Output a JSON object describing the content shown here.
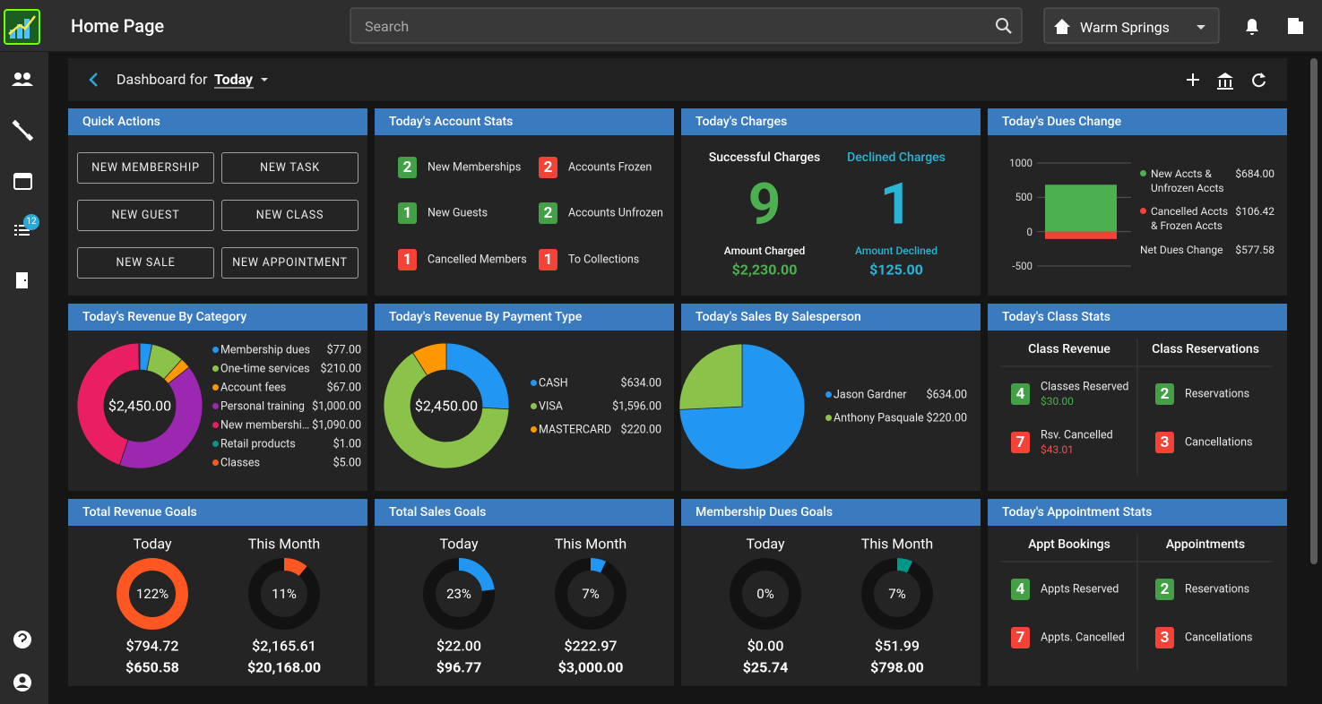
{
  "header": {
    "title": "Home Page",
    "search_placeholder": "Search",
    "location": "Warm Springs"
  },
  "sidebar": {
    "badge": 12
  },
  "toolbar": {
    "label": "Dashboard for",
    "period": "Today"
  },
  "quick_actions": {
    "title": "Quick Actions",
    "buttons": [
      "NEW MEMBERSHIP",
      "NEW TASK",
      "NEW GUEST",
      "NEW CLASS",
      "NEW SALE",
      "NEW APPOINTMENT"
    ]
  },
  "account_stats": {
    "title": "Today's Account Stats",
    "items": [
      {
        "count": 2,
        "label": "New Memberships",
        "color": "#43a047"
      },
      {
        "count": 2,
        "label": "Accounts Frozen",
        "color": "#f44336"
      },
      {
        "count": 1,
        "label": "New Guests",
        "color": "#43a047"
      },
      {
        "count": 2,
        "label": "Accounts Unfrozen",
        "color": "#43a047"
      },
      {
        "count": 1,
        "label": "Cancelled Members",
        "color": "#f44336"
      },
      {
        "count": 1,
        "label": "To Collections",
        "color": "#f44336"
      }
    ]
  },
  "charges": {
    "title": "Today's Charges",
    "successful": {
      "label": "Successful Charges",
      "count": 9,
      "amount_label": "Amount Charged",
      "amount": "$2,230.00",
      "color": "#4caf50"
    },
    "declined": {
      "label": "Declined Charges",
      "count": 1,
      "amount_label": "Amount Declined",
      "amount": "$125.00",
      "color": "#29b6d6"
    }
  },
  "chart_data": [
    {
      "type": "bar",
      "title": "Today's Dues Change",
      "categories": [
        null
      ],
      "series": [
        {
          "name": "New Accts & Unfrozen Accts",
          "color": "#4caf50",
          "values": [
            684
          ],
          "value_labels": [
            "$684.00"
          ]
        },
        {
          "name": "Cancelled Accts & Frozen Accts",
          "color": "#f44336",
          "values": [
            -106.42
          ],
          "value_labels": [
            "$106.42"
          ]
        }
      ],
      "ylim": [
        -500,
        1000
      ],
      "yticks": [
        -500,
        0,
        500,
        1000
      ],
      "grid": true,
      "net": {
        "label": "Net Dues Change",
        "value": "$577.58"
      }
    },
    {
      "type": "pie",
      "title": "Today's Revenue By Category",
      "donut": true,
      "center_label": "$2,450.00",
      "categories": [
        "Membership dues",
        "One-time services",
        "Account fees",
        "Personal training",
        "New membershi…",
        "Retail products",
        "Classes"
      ],
      "values": [
        77,
        210,
        67,
        1000,
        1090,
        1,
        5
      ],
      "value_labels": [
        "$77.00",
        "$210.00",
        "$67.00",
        "$1,000.00",
        "$1,090.00",
        "$1.00",
        "$5.00"
      ],
      "colors": [
        "#2196f3",
        "#8bc34a",
        "#ff9800",
        "#9c27b0",
        "#e91e63",
        "#009688",
        "#ff5722"
      ]
    },
    {
      "type": "pie",
      "title": "Today's Revenue By Payment Type",
      "donut": true,
      "center_label": "$2,450.00",
      "categories": [
        "CASH",
        "VISA",
        "MASTERCARD"
      ],
      "values": [
        634,
        1596,
        220
      ],
      "value_labels": [
        "$634.00",
        "$1,596.00",
        "$220.00"
      ],
      "colors": [
        "#2196f3",
        "#8bc34a",
        "#ff9800"
      ]
    },
    {
      "type": "pie",
      "title": "Today's Sales By Salesperson",
      "donut": false,
      "categories": [
        "Jason Gardner",
        "Anthony Pasquale"
      ],
      "values": [
        634,
        220
      ],
      "value_labels": [
        "$634.00",
        "$220.00"
      ],
      "colors": [
        "#2196f3",
        "#8bc34a"
      ]
    }
  ],
  "class_stats": {
    "title": "Today's Class Stats",
    "columns": [
      {
        "heading": "Class Revenue",
        "items": [
          {
            "count": 4,
            "label": "Classes Reserved",
            "amount": "$30.00",
            "color": "#43a047"
          },
          {
            "count": 7,
            "label": "Rsv. Cancelled",
            "amount": "$43.01",
            "color": "#f44336"
          }
        ]
      },
      {
        "heading": "Class Reservations",
        "items": [
          {
            "count": 2,
            "label": "Reservations",
            "color": "#43a047"
          },
          {
            "count": 3,
            "label": "Cancellations",
            "color": "#f44336"
          }
        ]
      }
    ]
  },
  "appointment_stats": {
    "title": "Today's Appointment Stats",
    "columns": [
      {
        "heading": "Appt Bookings",
        "items": [
          {
            "count": 4,
            "label": "Appts Reserved",
            "color": "#43a047"
          },
          {
            "count": 7,
            "label": "Appts. Cancelled",
            "color": "#f44336"
          }
        ]
      },
      {
        "heading": "Appointments",
        "items": [
          {
            "count": 2,
            "label": "Reservations",
            "color": "#43a047"
          },
          {
            "count": 3,
            "label": "Cancellations",
            "color": "#f44336"
          }
        ]
      }
    ]
  },
  "goals": [
    {
      "title": "Total Revenue Goals",
      "color": "#ff5722",
      "columns": [
        {
          "heading": "Today",
          "percent": {
            "value": 122,
            "label": "122%"
          },
          "actual": "$794.72",
          "goal": "$650.58"
        },
        {
          "heading": "This Month",
          "percent": {
            "value": 11,
            "label": "11%"
          },
          "actual": "$2,165.61",
          "goal": "$20,168.00"
        }
      ]
    },
    {
      "title": "Total Sales Goals",
      "color": "#2196f3",
      "columns": [
        {
          "heading": "Today",
          "percent": {
            "value": 23,
            "label": "23%"
          },
          "actual": "$22.00",
          "goal": "$96.77"
        },
        {
          "heading": "This Month",
          "percent": {
            "value": 7,
            "label": "7%"
          },
          "actual": "$222.97",
          "goal": "$3,000.00"
        }
      ]
    },
    {
      "title": "Membership Dues Goals",
      "color": "#009688",
      "columns": [
        {
          "heading": "Today",
          "percent": {
            "value": 0,
            "label": "0%"
          },
          "actual": "$0.00",
          "goal": "$25.74"
        },
        {
          "heading": "This Month",
          "percent": {
            "value": 7,
            "label": "7%"
          },
          "actual": "$51.99",
          "goal": "$798.00"
        }
      ]
    }
  ]
}
